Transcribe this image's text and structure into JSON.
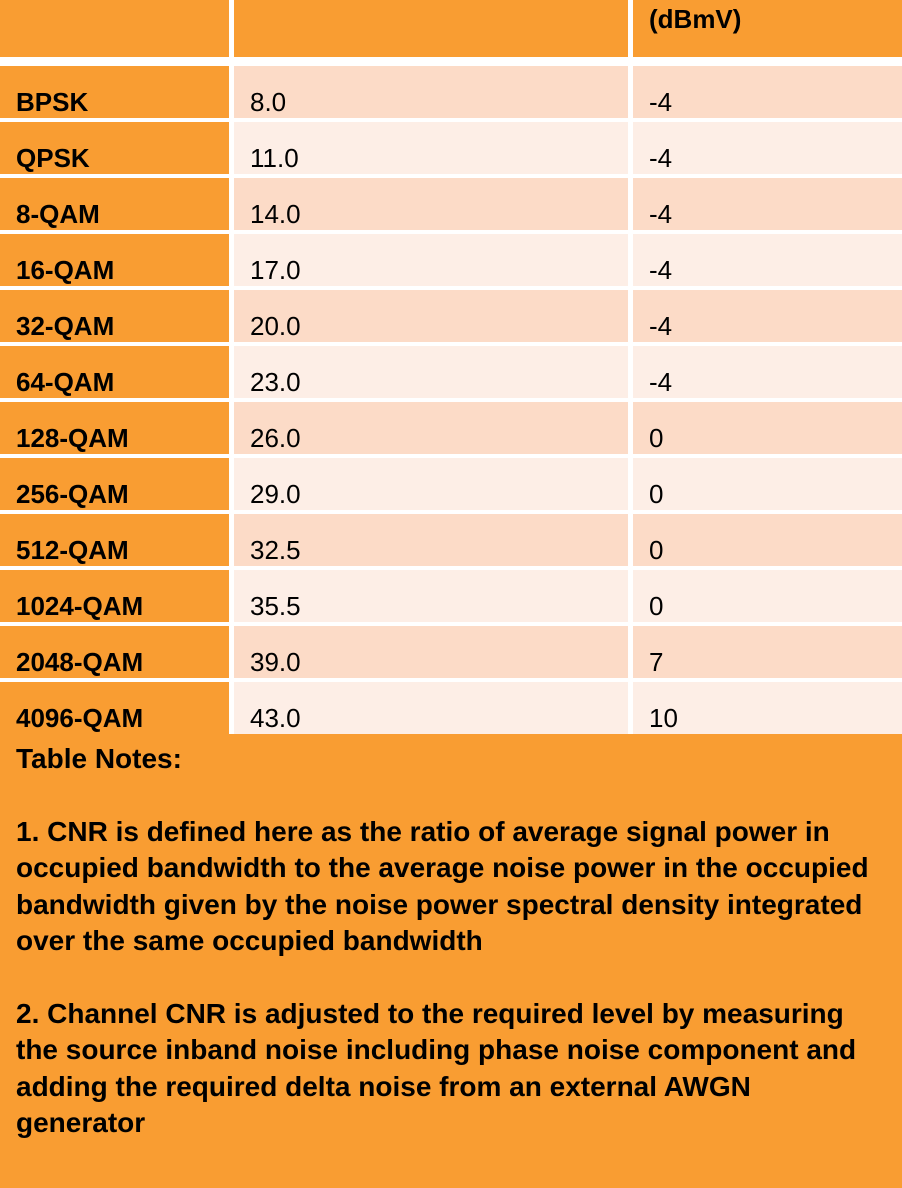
{
  "header": {
    "col1": "",
    "col2": "",
    "col3": "(dBmV)"
  },
  "rows": [
    {
      "modulation": "BPSK",
      "cnr": "8.0",
      "level": "-4"
    },
    {
      "modulation": "QPSK",
      "cnr": "11.0",
      "level": "-4"
    },
    {
      "modulation": "8-QAM",
      "cnr": "14.0",
      "level": "-4"
    },
    {
      "modulation": "16-QAM",
      "cnr": "17.0",
      "level": "-4"
    },
    {
      "modulation": "32-QAM",
      "cnr": "20.0",
      "level": "-4"
    },
    {
      "modulation": "64-QAM",
      "cnr": "23.0",
      "level": "-4"
    },
    {
      "modulation": "128-QAM",
      "cnr": "26.0",
      "level": "0"
    },
    {
      "modulation": "256-QAM",
      "cnr": "29.0",
      "level": "0"
    },
    {
      "modulation": "512-QAM",
      "cnr": "32.5",
      "level": "0"
    },
    {
      "modulation": "1024-QAM",
      "cnr": "35.5",
      "level": "0"
    },
    {
      "modulation": "2048-QAM",
      "cnr": "39.0",
      "level": "7"
    },
    {
      "modulation": "4096-QAM",
      "cnr": "43.0",
      "level": "10"
    }
  ],
  "notes": {
    "title": "Table Notes:",
    "note1": "1. CNR is defined here as the ratio of average signal power in occupied bandwidth to the average noise power in the occupied bandwidth given by the noise power spectral density integrated over the same occupied bandwidth",
    "note2": "2. Channel CNR is adjusted to the required level by measuring the source inband noise including phase noise component and adding the required delta noise from an external AWGN generator"
  }
}
